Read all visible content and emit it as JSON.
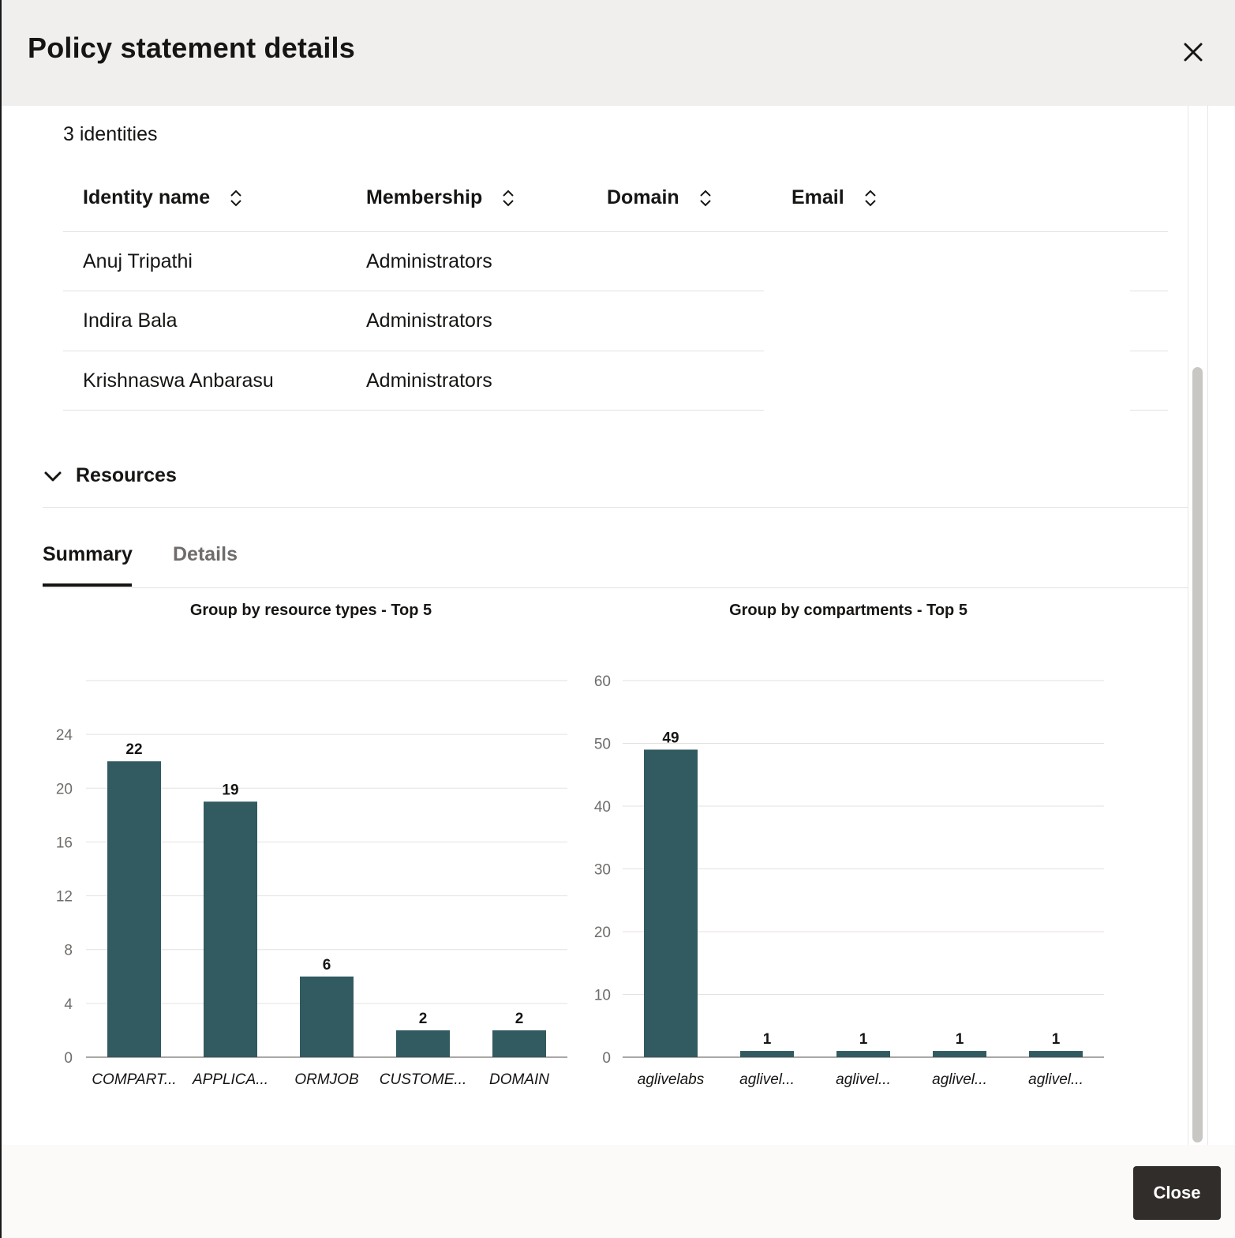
{
  "dialog": {
    "title": "Policy statement details",
    "close_icon": "close-icon"
  },
  "identities": {
    "count_label": "3 identities",
    "columns": [
      "Identity name",
      "Membership",
      "Domain",
      "Email"
    ],
    "sort_icon": "sort-icon",
    "rows": [
      {
        "name": "Anuj Tripathi",
        "membership": "Administrators",
        "domain": "",
        "email": ""
      },
      {
        "name": "Indira Bala",
        "membership": "Administrators",
        "domain": "",
        "email": ""
      },
      {
        "name": "Krishnaswa Anbarasu",
        "membership": "Administrators",
        "domain": "",
        "email": ""
      }
    ]
  },
  "resources": {
    "section_label": "Resources",
    "toggle_icon": "chevron-down-icon",
    "tabs": [
      {
        "label": "Summary",
        "active": true
      },
      {
        "label": "Details",
        "active": false
      }
    ]
  },
  "chart_data": [
    {
      "type": "bar",
      "title": "Group by resource types - Top 5",
      "categories": [
        "COMPART...",
        "APPLICA...",
        "ORMJOB",
        "CUSTOME...",
        "DOMAIN"
      ],
      "values": [
        22,
        19,
        6,
        2,
        2
      ],
      "yticks": [
        0,
        4,
        8,
        12,
        16,
        20,
        24
      ],
      "ylim": [
        0,
        28
      ],
      "xlabel": "",
      "ylabel": "",
      "grid": true,
      "bar_color": "#325a61"
    },
    {
      "type": "bar",
      "title": "Group by compartments - Top 5",
      "categories": [
        "aglivelabs",
        "aglivel...",
        "aglivel...",
        "aglivel...",
        "aglivel..."
      ],
      "values": [
        49,
        1,
        1,
        1,
        1
      ],
      "yticks": [
        0,
        10,
        20,
        30,
        40,
        50,
        60
      ],
      "ylim": [
        0,
        60
      ],
      "xlabel": "",
      "ylabel": "",
      "grid": true,
      "bar_color": "#325a61"
    }
  ],
  "footer": {
    "close_label": "Close"
  }
}
